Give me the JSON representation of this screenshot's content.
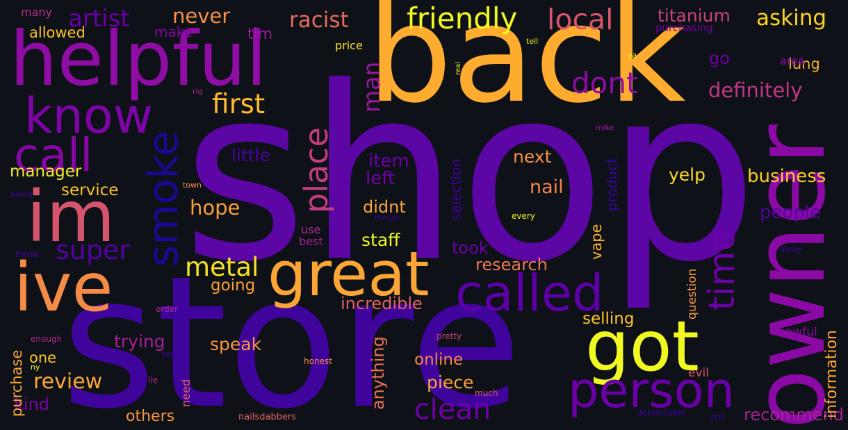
{
  "words": [
    {
      "text": "shop",
      "color": "#5b06a5"
    },
    {
      "text": "store",
      "color": "#3f049c"
    },
    {
      "text": "back",
      "color": "#fdac2f"
    },
    {
      "text": "owner",
      "color": "#8b0aa5"
    },
    {
      "text": "helpful",
      "color": "#8f0da4"
    },
    {
      "text": "great",
      "color": "#fca636"
    },
    {
      "text": "im",
      "color": "#d5546e"
    },
    {
      "text": "ive",
      "color": "#f58c46"
    },
    {
      "text": "got",
      "color": "#f0f921"
    },
    {
      "text": "know",
      "color": "#7e03a8"
    },
    {
      "text": "call",
      "color": "#8606a6"
    },
    {
      "text": "smoke",
      "color": "#1a0892"
    },
    {
      "text": "called",
      "color": "#5c01a6"
    },
    {
      "text": "person",
      "color": "#6a00a8"
    },
    {
      "text": "place",
      "color": "#c33d80"
    },
    {
      "text": "time",
      "color": "#6d00a8"
    },
    {
      "text": "friendly",
      "color": "#f0f921"
    },
    {
      "text": "first",
      "color": "#feb82c"
    },
    {
      "text": "local",
      "color": "#d6556d"
    },
    {
      "text": "dont",
      "color": "#8e0ca4"
    },
    {
      "text": "metal",
      "color": "#f7e225"
    },
    {
      "text": "clean",
      "color": "#6f00a8"
    },
    {
      "text": "super",
      "color": "#5302a3"
    },
    {
      "text": "artist",
      "color": "#6a00a8"
    },
    {
      "text": "asking",
      "color": "#fcd225"
    },
    {
      "text": "racist",
      "color": "#e56b5d"
    },
    {
      "text": "never",
      "color": "#f68f44"
    },
    {
      "text": "titanium",
      "color": "#c8437b"
    },
    {
      "text": "definitely",
      "color": "#bd3786"
    },
    {
      "text": "man",
      "color": "#9c179e"
    },
    {
      "text": "hope",
      "color": "#fa9e3b"
    },
    {
      "text": "review",
      "color": "#fca835"
    },
    {
      "text": "business",
      "color": "#fcce25"
    },
    {
      "text": "manager",
      "color": "#f3ee27"
    },
    {
      "text": "service",
      "color": "#fdc328"
    },
    {
      "text": "yelp",
      "color": "#fbd724"
    },
    {
      "text": "nail",
      "color": "#f48849"
    },
    {
      "text": "next",
      "color": "#f79044"
    },
    {
      "text": "item",
      "color": "#6a00a8"
    },
    {
      "text": "left",
      "color": "#7201a8"
    },
    {
      "text": "didnt",
      "color": "#f9a242"
    },
    {
      "text": "staff",
      "color": "#f0f921"
    },
    {
      "text": "people",
      "color": "#5302a3"
    },
    {
      "text": "little",
      "color": "#46039f"
    },
    {
      "text": "research",
      "color": "#ed7953"
    },
    {
      "text": "incredible",
      "color": "#e16462"
    },
    {
      "text": "going",
      "color": "#fb9f3a"
    },
    {
      "text": "took",
      "color": "#6a00a8"
    },
    {
      "text": "selling",
      "color": "#fdc527"
    },
    {
      "text": "speak",
      "color": "#f89540"
    },
    {
      "text": "trying",
      "color": "#a62098"
    },
    {
      "text": "online",
      "color": "#f48849"
    },
    {
      "text": "piece",
      "color": "#fca636"
    },
    {
      "text": "one",
      "color": "#fdca26"
    },
    {
      "text": "kind",
      "color": "#7e03a8"
    },
    {
      "text": "others",
      "color": "#f89540"
    },
    {
      "text": "recommend",
      "color": "#a72197"
    },
    {
      "text": "information",
      "color": "#fca636"
    },
    {
      "text": "anything",
      "color": "#e97158"
    },
    {
      "text": "selection",
      "color": "#3a049a"
    },
    {
      "text": "product",
      "color": "#3a049a"
    },
    {
      "text": "vape",
      "color": "#fdb42f"
    },
    {
      "text": "purchase",
      "color": "#fca636"
    },
    {
      "text": "lung",
      "color": "#fcb12f"
    },
    {
      "text": "go",
      "color": "#6a00a8"
    },
    {
      "text": "tim",
      "color": "#9c179e"
    },
    {
      "text": "make",
      "color": "#8606a6"
    },
    {
      "text": "allowed",
      "color": "#fdc527"
    },
    {
      "text": "price",
      "color": "#f7e225"
    },
    {
      "text": "purchasing",
      "color": "#7201a8"
    },
    {
      "text": "many",
      "color": "#b6308b"
    },
    {
      "text": "area",
      "color": "#8b0aa5"
    },
    {
      "text": "question",
      "color": "#fb9b3f"
    },
    {
      "text": "evil",
      "color": "#d8576b"
    },
    {
      "text": "awful",
      "color": "#8b0aa5"
    },
    {
      "text": "need",
      "color": "#e16462"
    },
    {
      "text": "use",
      "color": "#b02991"
    },
    {
      "text": "best",
      "color": "#a62098"
    },
    {
      "text": "real",
      "color": "#f0f921"
    },
    {
      "text": "tell",
      "color": "#f0f921"
    },
    {
      "text": "ya",
      "color": "#f0f921"
    },
    {
      "text": "rig",
      "color": "#b02991"
    },
    {
      "text": "mike",
      "color": "#9c179e"
    },
    {
      "text": "town",
      "color": "#f68f44"
    },
    {
      "text": "every",
      "color": "#f0f921"
    },
    {
      "text": "theyre",
      "color": "#3a049a"
    },
    {
      "text": "asked",
      "color": "#46039f"
    },
    {
      "text": "throw",
      "color": "#46039f"
    },
    {
      "text": "away",
      "color": "#3a049a"
    },
    {
      "text": "order",
      "color": "#b02991"
    },
    {
      "text": "enough",
      "color": "#b02991"
    },
    {
      "text": "pretty",
      "color": "#c33d80"
    },
    {
      "text": "sent",
      "color": "#3a049a"
    },
    {
      "text": "honest",
      "color": "#f48849"
    },
    {
      "text": "ny",
      "color": "#f0f921"
    },
    {
      "text": "lie",
      "color": "#b02991"
    },
    {
      "text": "much",
      "color": "#d8576b"
    },
    {
      "text": "nailsdabbers",
      "color": "#e16462"
    },
    {
      "text": "dependable",
      "color": "#3a049a"
    },
    {
      "text": "still",
      "color": "#3a049a"
    }
  ]
}
